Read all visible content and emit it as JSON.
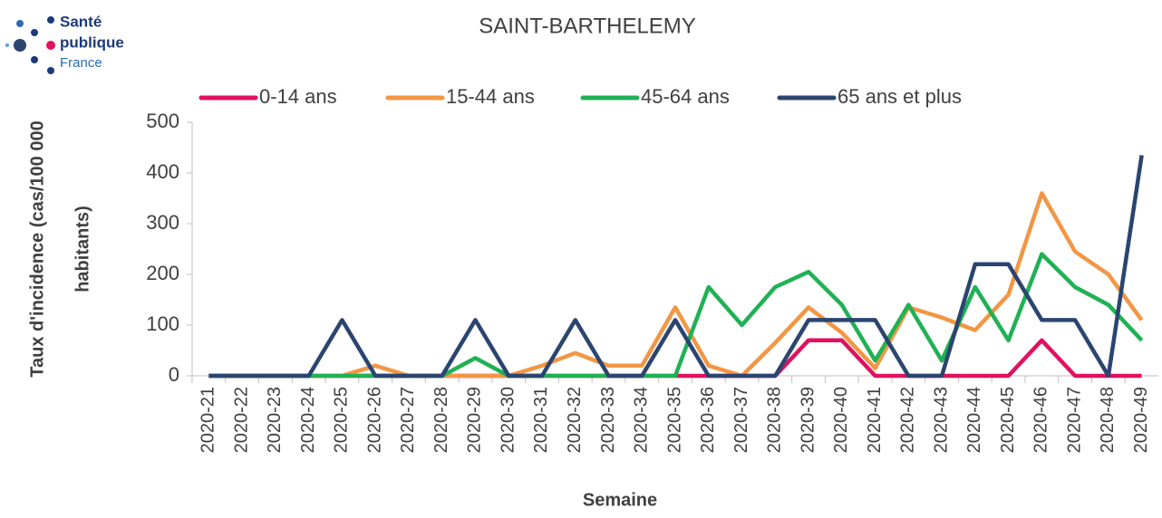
{
  "logo": {
    "lines": [
      "Santé",
      "publique",
      "France"
    ]
  },
  "chart_data": {
    "type": "line",
    "title": "SAINT-BARTHELEMY",
    "xlabel": "Semaine",
    "ylabel": [
      "Taux d'incidence  (cas/100 000",
      "habitants)"
    ],
    "categories": [
      "2020-21",
      "2020-22",
      "2020-23",
      "2020-24",
      "2020-25",
      "2020-26",
      "2020-27",
      "2020-28",
      "2020-29",
      "2020-30",
      "2020-31",
      "2020-32",
      "2020-33",
      "2020-34",
      "2020-35",
      "2020-36",
      "2020-37",
      "2020-38",
      "2020-39",
      "2020-40",
      "2020-41",
      "2020-42",
      "2020-43",
      "2020-44",
      "2020-45",
      "2020-46",
      "2020-47",
      "2020-48",
      "2020-49"
    ],
    "series": [
      {
        "name": "0-14 ans",
        "color": "#e0115f",
        "values": [
          0,
          0,
          0,
          0,
          0,
          0,
          0,
          0,
          0,
          0,
          0,
          0,
          0,
          0,
          0,
          0,
          0,
          0,
          70,
          70,
          0,
          0,
          0,
          0,
          0,
          70,
          0,
          0,
          0
        ]
      },
      {
        "name": "15-44 ans",
        "color": "#f39644",
        "values": [
          0,
          0,
          0,
          0,
          0,
          20,
          0,
          0,
          0,
          0,
          20,
          45,
          20,
          20,
          135,
          20,
          0,
          65,
          135,
          85,
          15,
          135,
          115,
          90,
          160,
          360,
          245,
          200,
          110
        ]
      },
      {
        "name": "45-64 ans",
        "color": "#1fb154",
        "values": [
          0,
          0,
          0,
          0,
          0,
          0,
          0,
          0,
          35,
          0,
          0,
          0,
          0,
          0,
          0,
          175,
          100,
          175,
          205,
          140,
          30,
          140,
          30,
          175,
          70,
          240,
          175,
          140,
          70
        ]
      },
      {
        "name": "65 ans et plus",
        "color": "#2b4570",
        "values": [
          0,
          0,
          0,
          0,
          110,
          0,
          0,
          0,
          110,
          0,
          0,
          110,
          0,
          0,
          110,
          0,
          0,
          0,
          110,
          110,
          110,
          0,
          0,
          220,
          220,
          110,
          110,
          0,
          435
        ]
      }
    ],
    "ylim": [
      0,
      500
    ],
    "yticks": [
      0,
      100,
      200,
      300,
      400,
      500
    ],
    "legend": "top",
    "grid": false
  }
}
